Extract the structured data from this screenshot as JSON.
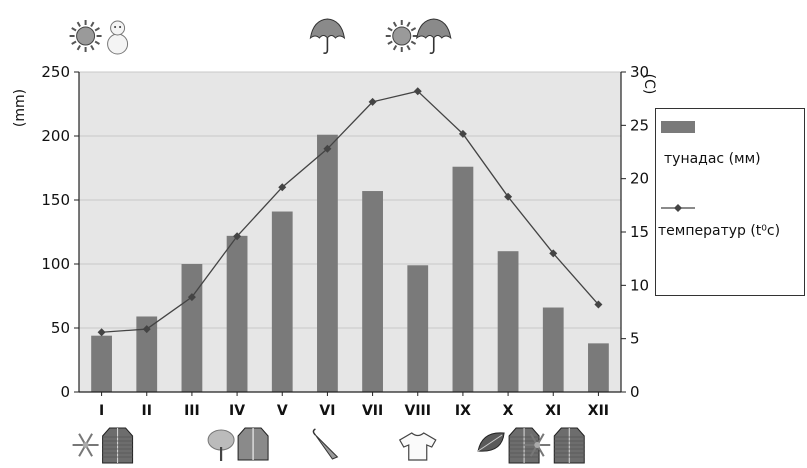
{
  "chart_data": {
    "type": "bar",
    "categories": [
      "I",
      "II",
      "III",
      "IV",
      "V",
      "VI",
      "VII",
      "VIII",
      "IX",
      "X",
      "XI",
      "XII"
    ],
    "series": [
      {
        "name": "тунадас (мм)",
        "type": "bar",
        "axis": "left",
        "values": [
          44,
          59,
          100,
          122,
          141,
          201,
          157,
          99,
          176,
          110,
          66,
          38
        ]
      },
      {
        "name": "температур (t⁰c)",
        "type": "line",
        "axis": "right",
        "values": [
          5.6,
          5.9,
          8.9,
          14.6,
          19.2,
          22.8,
          27.2,
          28.2,
          24.2,
          18.3,
          13.0,
          8.2
        ]
      }
    ],
    "ylim_left": [
      0,
      250
    ],
    "yticks_left": [
      0,
      50,
      100,
      150,
      200,
      250
    ],
    "ylabel_left": "(mm)",
    "ylim_right": [
      0,
      30
    ],
    "yticks_right": [
      0,
      5,
      10,
      15,
      20,
      25,
      30
    ],
    "ylabel_right": "(C)",
    "legend_placement": "right",
    "colors": {
      "bar": "#7a7a7a",
      "line": "#444444",
      "plot_bg": "#e6e6e6"
    },
    "top_icons": [
      {
        "category": "I",
        "icons": [
          "sun-icon",
          "snowman-icon"
        ]
      },
      {
        "category": "VI",
        "icons": [
          "umbrella-icon"
        ]
      },
      {
        "category": "VIII",
        "icons": [
          "sun-icon",
          "umbrella-icon"
        ]
      }
    ],
    "bottom_icons": [
      {
        "category": "I",
        "icons": [
          "snowflake-icon",
          "coat-icon"
        ]
      },
      {
        "category": "IV",
        "icons": [
          "tree-icon",
          "jacket-icon"
        ]
      },
      {
        "category": "VI",
        "icons": [
          "closed-umbrella-icon"
        ]
      },
      {
        "category": "VIII",
        "icons": [
          "tshirt-icon"
        ]
      },
      {
        "category": "X",
        "icons": [
          "leaf-icon",
          "coat-icon"
        ]
      },
      {
        "category": "XI",
        "icons": [
          "snowflake-icon",
          "coat-icon"
        ]
      }
    ]
  }
}
